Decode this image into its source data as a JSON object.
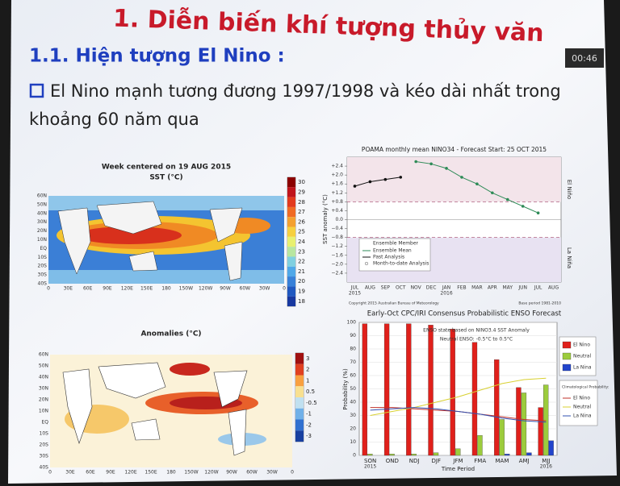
{
  "slide": {
    "title": "1. Diễn biến khí tượng thủy văn",
    "subtitle": "1.1. Hiện tượng El Nino :",
    "bullet_line1": "El Nino mạnh tương đương 1997/1998 và kéo dài nhất trong",
    "bullet_line2": "khoảng 60 năm qua",
    "timer": "00:46"
  },
  "sst_map": {
    "title": "Week centered on 19 AUG 2015",
    "subtitle": "SST (°C)",
    "colorbar": [
      30,
      29,
      28,
      27,
      26,
      25,
      24,
      23,
      22,
      21,
      20,
      19,
      18
    ],
    "lat_labels": [
      "60N",
      "50N",
      "40N",
      "30N",
      "20N",
      "10N",
      "EQ",
      "10S",
      "20S",
      "30S",
      "40S"
    ],
    "lon_labels": [
      "0",
      "30E",
      "60E",
      "90E",
      "120E",
      "150E",
      "180",
      "150W",
      "120W",
      "90W",
      "60W",
      "30W",
      "0"
    ]
  },
  "anomaly_map": {
    "title": "Anomalies (°C)",
    "colorbar": [
      3,
      2,
      1,
      0.5,
      -0.5,
      -1,
      -2,
      -3
    ],
    "lat_labels": [
      "60N",
      "50N",
      "40N",
      "30N",
      "20N",
      "10N",
      "EQ",
      "10S",
      "20S",
      "30S",
      "40S"
    ],
    "lon_labels": [
      "0",
      "30E",
      "60E",
      "90E",
      "120E",
      "150E",
      "180",
      "150W",
      "120W",
      "90W",
      "60W",
      "30W",
      "0"
    ]
  },
  "poama": {
    "title": "POAMA monthly mean NINO34 - Forecast Start: 25 OCT 2015",
    "ylabel": "SST anomaly (°C)",
    "ylim": [
      -2.8,
      2.8
    ],
    "yticks": [
      {
        "value": 2.4,
        "label": "+2.4"
      },
      {
        "value": 2,
        "label": "+2.0"
      },
      {
        "value": 1.6,
        "label": "+1.6"
      },
      {
        "value": 1.2,
        "label": "+1.2"
      },
      {
        "value": 0.8,
        "label": "+0.8"
      },
      {
        "value": 0.4,
        "label": "+0.4"
      },
      {
        "value": 0,
        "label": "0.0"
      },
      {
        "value": -0.4,
        "label": "−0.4"
      },
      {
        "value": -0.8,
        "label": "−0.8"
      },
      {
        "value": -1.2,
        "label": "−1.2"
      },
      {
        "value": -1.6,
        "label": "−1.6"
      },
      {
        "value": -2,
        "label": "−2.0"
      },
      {
        "value": -2.4,
        "label": "−2.4"
      }
    ],
    "thresholds": [
      0.8,
      -0.8
    ],
    "categories": [
      "JUL",
      "AUG",
      "SEP",
      "OCT",
      "NOV",
      "DEC",
      "JAN",
      "FEB",
      "MAR",
      "APR",
      "MAY",
      "JUN",
      "JUL",
      "AUG"
    ],
    "years": [
      "2015",
      "2016"
    ],
    "series": [
      {
        "name": "Ensemble Mean",
        "color": "#2e8b57",
        "values": [
          null,
          null,
          null,
          null,
          2.6,
          2.5,
          2.3,
          1.9,
          1.6,
          1.2,
          0.9,
          0.6,
          0.3,
          null
        ]
      },
      {
        "name": "Past Analysis",
        "color": "#111111",
        "values": [
          1.5,
          1.7,
          1.8,
          1.9,
          null,
          null,
          null,
          null,
          null,
          null,
          null,
          null,
          null,
          null
        ]
      }
    ],
    "legend_title": "Ensemble Member",
    "legend_extra": "Month-to-date Analysis",
    "el_nino": "El Niño",
    "la_nina": "La Niña",
    "copyright": "Copyright 2015 Australian Bureau of Meteorology",
    "base": "Base period 1981-2010"
  },
  "enso": {
    "title": "Early-Oct CPC/IRI Consensus Probabilistic ENSO Forecast",
    "note1": "ENSO state based on NINO3.4 SST Anomaly",
    "note2": "Neutral ENSO: -0.5°C to 0.5°C",
    "ylabel": "Probability (%)",
    "xlabel": "Time Period",
    "ylim": [
      0,
      100
    ],
    "yticks": [
      0,
      10,
      20,
      30,
      40,
      50,
      60,
      70,
      80,
      90,
      100
    ],
    "categories": [
      "SON",
      "OND",
      "NDJ",
      "DJF",
      "JFM",
      "FMA",
      "MAM",
      "AMJ",
      "MJJ"
    ],
    "years": [
      "2015",
      "2016"
    ],
    "series": [
      {
        "name": "El Nino",
        "color": "#e0201b",
        "values": [
          99,
          99,
          99,
          98,
          95,
          85,
          72,
          51,
          36
        ]
      },
      {
        "name": "Neutral",
        "color": "#9ccc3c",
        "values": [
          1,
          1,
          1,
          2,
          5,
          15,
          27,
          47,
          53
        ]
      },
      {
        "name": "La Nina",
        "color": "#2244cc",
        "values": [
          0,
          0,
          0,
          0,
          0,
          0,
          1,
          2,
          11
        ]
      }
    ],
    "clim_title": "Climatological Probability:",
    "climatology": [
      {
        "name": "El Nino",
        "color": "#c0302a",
        "values": [
          36,
          36,
          35,
          34,
          33,
          31,
          29,
          27,
          26
        ]
      },
      {
        "name": "Neutral",
        "color": "#d8d030",
        "values": [
          30,
          33,
          36,
          40,
          44,
          49,
          54,
          57,
          58
        ]
      },
      {
        "name": "La Nina",
        "color": "#3050b0",
        "values": [
          34,
          35,
          36,
          35,
          33,
          31,
          28,
          26,
          25
        ]
      }
    ]
  }
}
